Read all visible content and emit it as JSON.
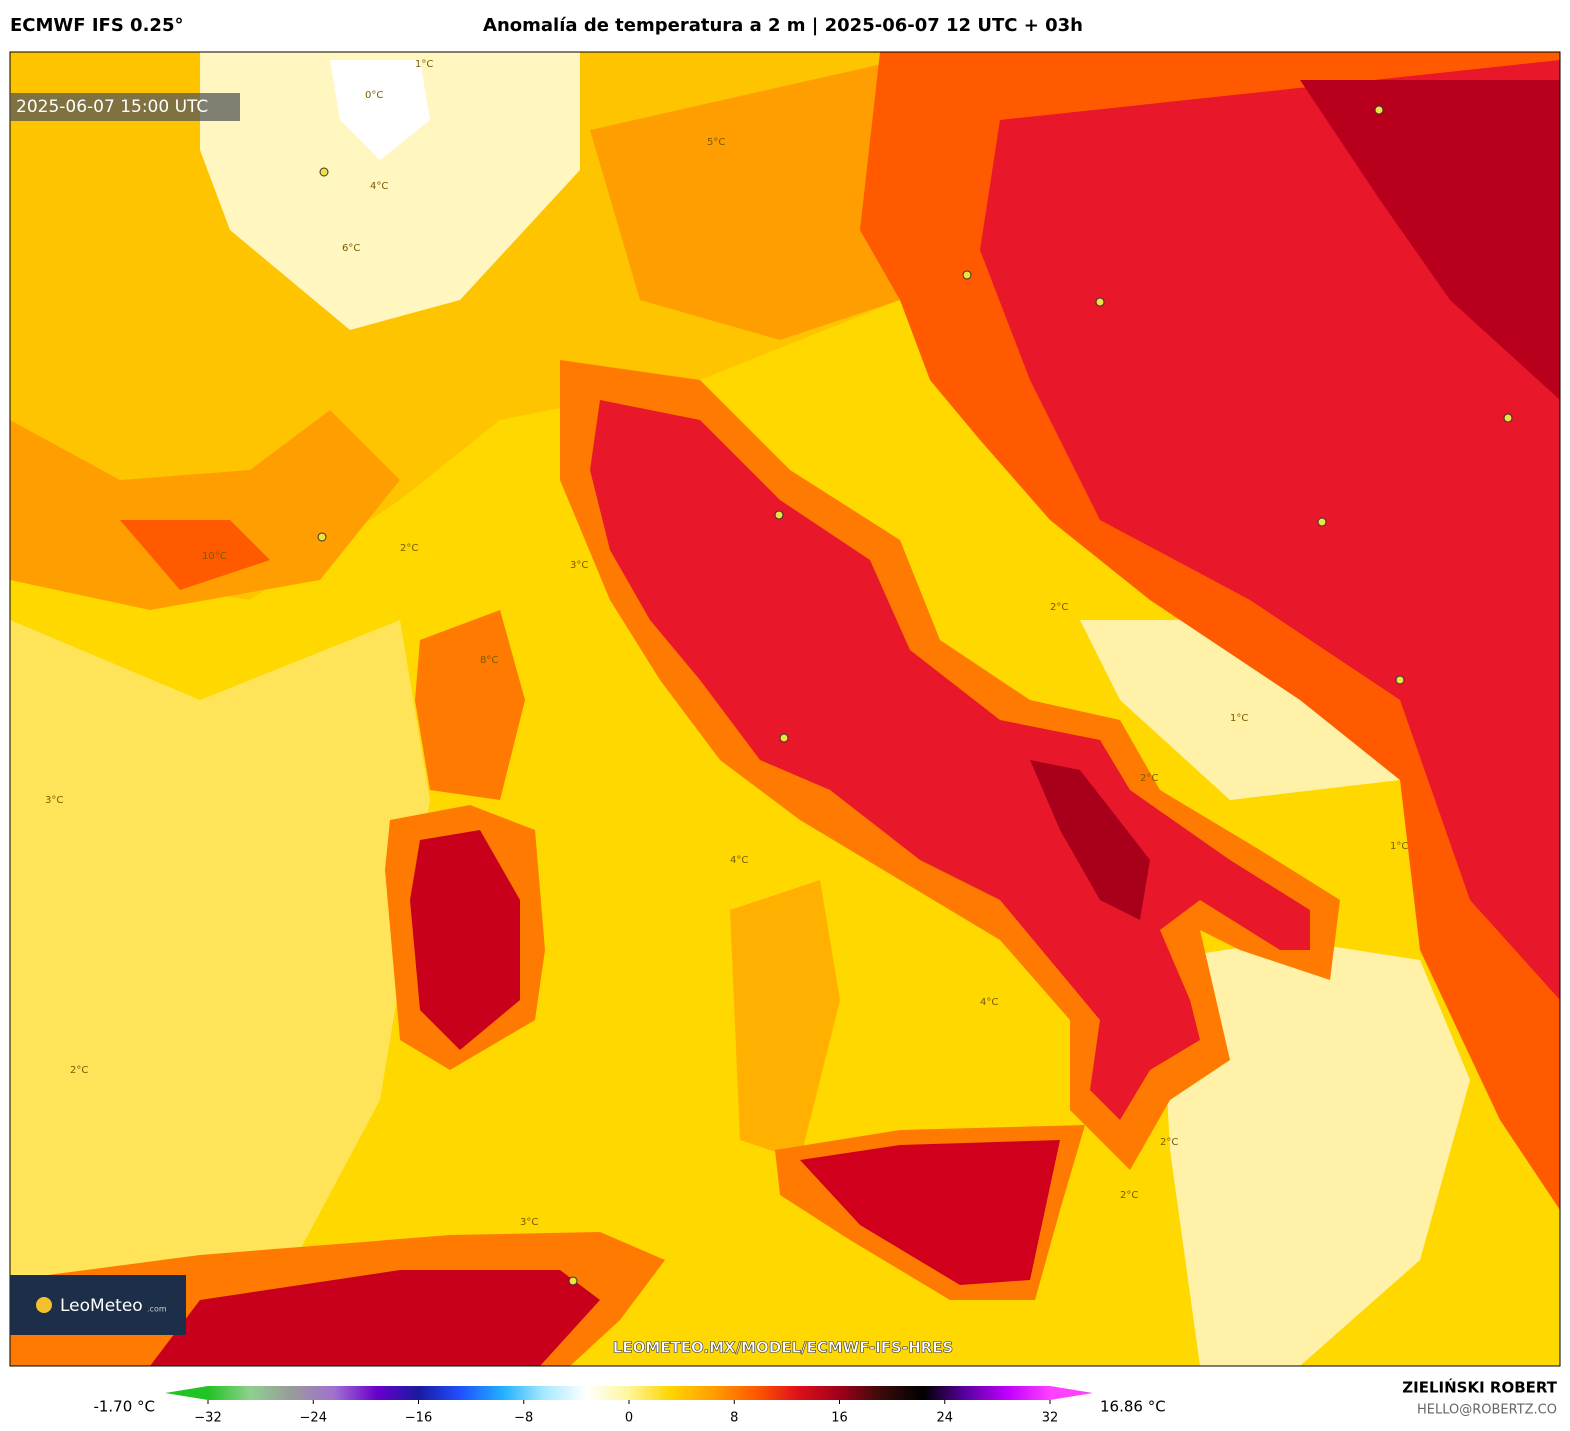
{
  "header": {
    "model": "ECMWF IFS 0.25°",
    "title": "Anomalía de temperatura a 2 m | 2025-06-07 12 UTC + 03h"
  },
  "map": {
    "valid_time": "2025-06-07 15:00 UTC",
    "watermark": "LEOMETEO.MX/MODEL/ECMWF-IFS-HRES",
    "logo": "LeoMeteo",
    "logo_suffix": ".com",
    "contour_labels": [
      "1°C",
      "0°C",
      "4°C",
      "5°C",
      "6°C",
      "8°C",
      "10°C",
      "2°C",
      "3°C",
      "3°C",
      "4°C",
      "2°C",
      "1°C",
      "2°C",
      "4°C",
      "2°C",
      "3°C",
      "2°C",
      "1°C",
      "2°C"
    ]
  },
  "colorbar": {
    "min_label": "-1.70 °C",
    "max_label": "16.86 °C",
    "range": [
      -32,
      32
    ],
    "ticks": [
      {
        "value": -32,
        "label": "−32"
      },
      {
        "value": -24,
        "label": "−24"
      },
      {
        "value": -16,
        "label": "−16"
      },
      {
        "value": -8,
        "label": "−8"
      },
      0,
      8,
      16,
      24,
      32
    ],
    "colors": [
      "#22c322",
      "#8fd08f",
      "#9a9a9a",
      "#a070d0",
      "#6a00cc",
      "#1a1aa0",
      "#2050ff",
      "#20b0ff",
      "#a8eaff",
      "#ffffff",
      "#fff59a",
      "#ffd400",
      "#ff9e00",
      "#ff5a00",
      "#e0101a",
      "#a0001a",
      "#3a0a0a",
      "#000000",
      "#5a00a0",
      "#c000ff",
      "#ff40ff"
    ]
  },
  "footer": {
    "author": "ZIELIŃSKI ROBERT",
    "email": "HELLO@ROBERTZ.CO"
  }
}
